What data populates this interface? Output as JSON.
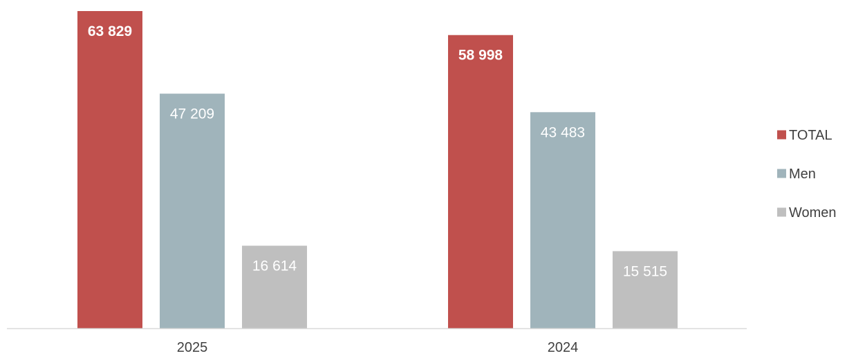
{
  "chart_data": {
    "type": "bar",
    "categories": [
      "2025",
      "2024"
    ],
    "series": [
      {
        "name": "TOTAL",
        "values": [
          63829,
          58998
        ],
        "labels": [
          "63 829",
          "58 998"
        ],
        "color": "#c0504d",
        "bold_labels": true
      },
      {
        "name": "Men",
        "values": [
          47209,
          43483
        ],
        "labels": [
          "47 209",
          "43 483"
        ],
        "color": "#a0b4bb",
        "bold_labels": false
      },
      {
        "name": "Women",
        "values": [
          16614,
          15515
        ],
        "labels": [
          "16 614",
          "15 515"
        ],
        "color": "#bfbfbf",
        "bold_labels": false
      }
    ],
    "title": "",
    "xlabel": "",
    "ylabel": "",
    "ylim": [
      0,
      66000
    ],
    "grid": false,
    "legend": "right",
    "axis_color": "#d9d9d9"
  }
}
